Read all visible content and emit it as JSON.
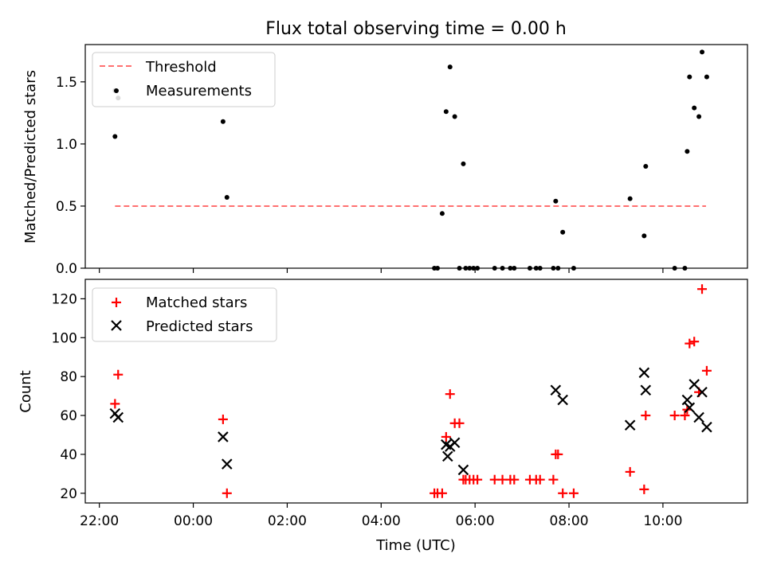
{
  "chart_data": [
    {
      "type": "scatter",
      "title": "Flux total observing time = 0.00 h",
      "xlabel": "",
      "ylabel": "Matched/Predicted stars",
      "xlim_hours": [
        -2.3,
        11.8
      ],
      "ylim": [
        0,
        1.8
      ],
      "yticks": [
        0.0,
        0.5,
        1.0,
        1.5
      ],
      "ytick_labels": [
        "0.0",
        "0.5",
        "1.0",
        "1.5"
      ],
      "legend": {
        "position": "top-left",
        "entries": [
          {
            "label": "Threshold",
            "style": "dashed-line",
            "color": "#ff7070"
          },
          {
            "label": "Measurements",
            "style": "dot",
            "color": "#000000"
          }
        ]
      },
      "threshold": {
        "name": "Threshold",
        "value": 0.5,
        "x_start": "22:20",
        "x_end": "10:55",
        "color": "#ff7070"
      },
      "series": [
        {
          "name": "Measurements",
          "marker": "dot",
          "color": "#000000",
          "points": [
            [
              "22:20",
              1.43
            ],
            [
              "22:20",
              1.06
            ],
            [
              "22:24",
              1.37
            ],
            [
              "00:38",
              1.18
            ],
            [
              "00:43",
              0.57
            ],
            [
              "05:08",
              0.0
            ],
            [
              "05:12",
              0.0
            ],
            [
              "05:18",
              0.44
            ],
            [
              "05:23",
              1.26
            ],
            [
              "05:28",
              1.62
            ],
            [
              "05:34",
              1.22
            ],
            [
              "05:40",
              0.0
            ],
            [
              "05:45",
              0.84
            ],
            [
              "05:48",
              0.0
            ],
            [
              "05:53",
              0.0
            ],
            [
              "05:58",
              0.0
            ],
            [
              "06:03",
              0.0
            ],
            [
              "06:25",
              0.0
            ],
            [
              "06:35",
              0.0
            ],
            [
              "06:45",
              0.0
            ],
            [
              "06:50",
              0.0
            ],
            [
              "07:10",
              0.0
            ],
            [
              "07:18",
              0.0
            ],
            [
              "07:23",
              0.0
            ],
            [
              "07:40",
              0.0
            ],
            [
              "07:43",
              0.54
            ],
            [
              "07:46",
              0.0
            ],
            [
              "07:52",
              0.29
            ],
            [
              "08:06",
              0.0
            ],
            [
              "09:18",
              0.56
            ],
            [
              "09:36",
              0.26
            ],
            [
              "09:38",
              0.82
            ],
            [
              "10:15",
              0.0
            ],
            [
              "10:28",
              0.0
            ],
            [
              "10:31",
              0.94
            ],
            [
              "10:34",
              1.54
            ],
            [
              "10:40",
              1.29
            ],
            [
              "10:46",
              1.22
            ],
            [
              "10:50",
              1.74
            ],
            [
              "10:56",
              1.54
            ]
          ]
        }
      ]
    },
    {
      "type": "scatter",
      "title": "",
      "xlabel": "Time (UTC)",
      "ylabel": "Count",
      "xlim_hours": [
        -2.3,
        11.8
      ],
      "ylim": [
        15,
        130
      ],
      "yticks": [
        20,
        40,
        60,
        80,
        100,
        120
      ],
      "ytick_labels": [
        "20",
        "40",
        "60",
        "80",
        "100",
        "120"
      ],
      "xticks_hours": [
        -2,
        0,
        2,
        4,
        6,
        8,
        10
      ],
      "xtick_labels": [
        "22:00",
        "00:00",
        "02:00",
        "04:00",
        "06:00",
        "08:00",
        "10:00"
      ],
      "legend": {
        "position": "top-left",
        "entries": [
          {
            "label": "Matched stars",
            "style": "plus",
            "color": "#ff0000"
          },
          {
            "label": "Predicted stars",
            "style": "x",
            "color": "#000000"
          }
        ]
      },
      "series": [
        {
          "name": "Matched stars",
          "marker": "plus",
          "color": "#ff0000",
          "points": [
            [
              "22:20",
              66
            ],
            [
              "22:24",
              81
            ],
            [
              "00:38",
              58
            ],
            [
              "00:43",
              20
            ],
            [
              "05:08",
              20
            ],
            [
              "05:12",
              20
            ],
            [
              "05:18",
              20
            ],
            [
              "05:23",
              49
            ],
            [
              "05:28",
              71
            ],
            [
              "05:34",
              56
            ],
            [
              "05:40",
              56
            ],
            [
              "05:45",
              27
            ],
            [
              "05:48",
              27
            ],
            [
              "05:53",
              27
            ],
            [
              "05:58",
              27
            ],
            [
              "06:03",
              27
            ],
            [
              "06:25",
              27
            ],
            [
              "06:35",
              27
            ],
            [
              "06:45",
              27
            ],
            [
              "06:50",
              27
            ],
            [
              "07:10",
              27
            ],
            [
              "07:18",
              27
            ],
            [
              "07:23",
              27
            ],
            [
              "07:40",
              27
            ],
            [
              "07:43",
              40
            ],
            [
              "07:46",
              40
            ],
            [
              "07:52",
              20
            ],
            [
              "08:06",
              20
            ],
            [
              "09:18",
              31
            ],
            [
              "09:36",
              22
            ],
            [
              "09:38",
              60
            ],
            [
              "10:15",
              60
            ],
            [
              "10:28",
              60
            ],
            [
              "10:31",
              63
            ],
            [
              "10:34",
              97
            ],
            [
              "10:40",
              98
            ],
            [
              "10:46",
              72
            ],
            [
              "10:50",
              125
            ],
            [
              "10:56",
              83
            ]
          ]
        },
        {
          "name": "Predicted stars",
          "marker": "x",
          "color": "#000000",
          "points": [
            [
              "22:20",
              61
            ],
            [
              "22:24",
              59
            ],
            [
              "00:38",
              49
            ],
            [
              "00:43",
              35
            ],
            [
              "05:23",
              45
            ],
            [
              "05:25",
              39
            ],
            [
              "05:28",
              44
            ],
            [
              "05:34",
              46
            ],
            [
              "05:45",
              32
            ],
            [
              "07:43",
              73
            ],
            [
              "07:52",
              68
            ],
            [
              "09:18",
              55
            ],
            [
              "09:36",
              82
            ],
            [
              "09:38",
              73
            ],
            [
              "10:31",
              68
            ],
            [
              "10:34",
              64
            ],
            [
              "10:40",
              76
            ],
            [
              "10:46",
              59
            ],
            [
              "10:50",
              72
            ],
            [
              "10:56",
              54
            ]
          ]
        }
      ]
    }
  ]
}
